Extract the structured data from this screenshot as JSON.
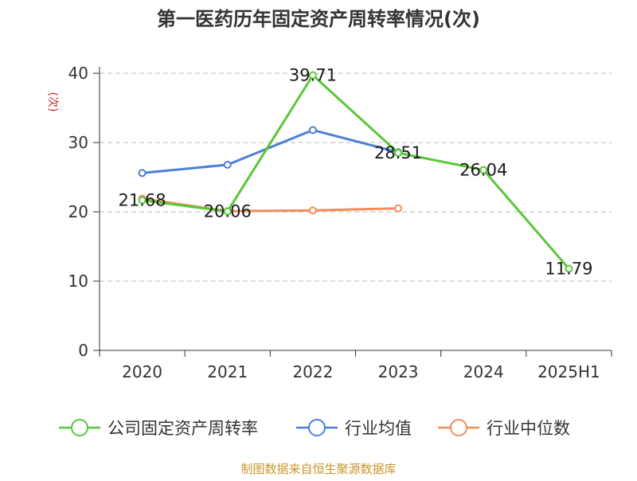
{
  "chart_data": {
    "type": "line",
    "title": "第一医药历年固定资产周转率情况(次)",
    "ylabel": "(次)",
    "xlabel": "",
    "categories": [
      "2020",
      "2021",
      "2022",
      "2023",
      "2024",
      "2025H1"
    ],
    "ylim": [
      0,
      40
    ],
    "yticks": [
      0,
      10,
      20,
      30,
      40
    ],
    "grid": true,
    "legend_position": "bottom",
    "series": [
      {
        "name": "公司固定资产周转率",
        "color": "#5ac73a",
        "values": [
          21.68,
          20.06,
          39.71,
          28.51,
          26.04,
          11.79
        ],
        "labels": [
          "21.68",
          "20.06",
          "39.71",
          "28.51",
          "26.04",
          "11.79"
        ]
      },
      {
        "name": "行业均值",
        "color": "#4d7fd6",
        "values": [
          25.6,
          26.8,
          31.8,
          28.6,
          null,
          null
        ]
      },
      {
        "name": "行业中位数",
        "color": "#f28c5b",
        "values": [
          21.9,
          20.1,
          20.2,
          20.5,
          null,
          null
        ]
      }
    ]
  },
  "source": "制图数据来自恒生聚源数据库"
}
